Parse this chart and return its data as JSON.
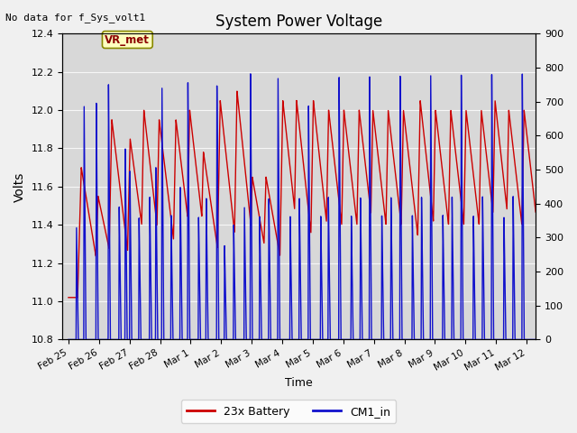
{
  "title": "System Power Voltage",
  "xlabel": "Time",
  "ylabel": "Volts",
  "no_data_text": "No data for f_Sys_volt1",
  "vr_met_label": "VR_met",
  "legend": [
    "23x Battery",
    "CM1_in"
  ],
  "legend_colors": [
    "#cc0000",
    "#1111cc"
  ],
  "ylim": [
    10.8,
    12.4
  ],
  "ylim2": [
    0,
    900
  ],
  "yticks": [
    10.8,
    11.0,
    11.2,
    11.4,
    11.6,
    11.8,
    12.0,
    12.2,
    12.4
  ],
  "yticks2": [
    0,
    100,
    200,
    300,
    400,
    500,
    600,
    700,
    800,
    900
  ],
  "plot_bg_color": "#d8d8d8",
  "figsize": [
    6.4,
    4.8
  ],
  "dpi": 100,
  "x_tick_labels": [
    "Feb 25",
    "Feb 26",
    "Feb 27",
    "Feb 28",
    "Mar 1",
    "Mar 2",
    "Mar 3",
    "Mar 4",
    "Mar 5",
    "Mar 6",
    "Mar 7",
    "Mar 8",
    "Mar 9",
    "Mar 10",
    "Mar 11",
    "Mar 12"
  ],
  "total_days": 15.5
}
